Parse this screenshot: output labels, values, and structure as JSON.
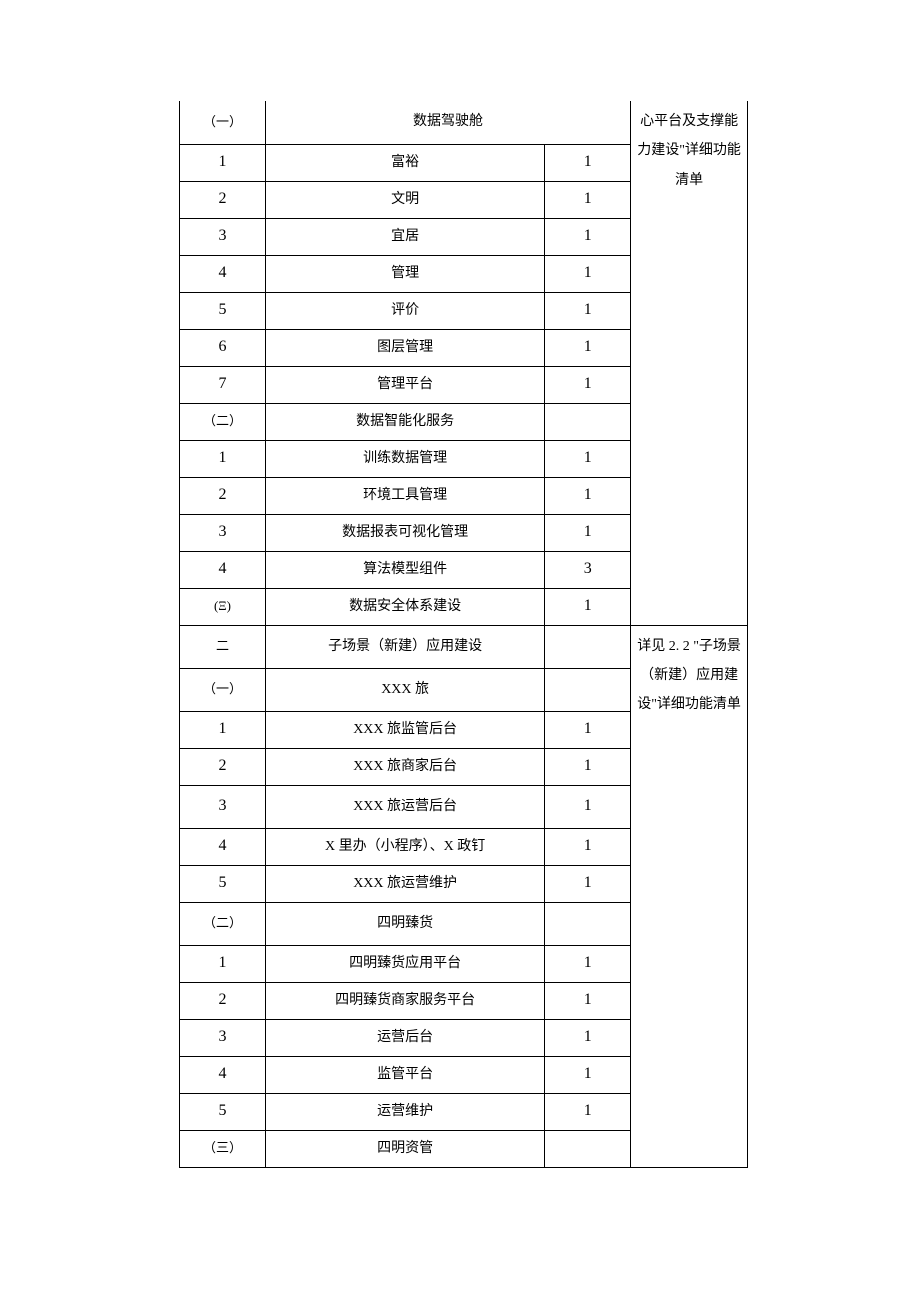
{
  "table": {
    "border_color": "#000000",
    "background_color": "#ffffff",
    "col_widths": {
      "idx": 86,
      "name": 280,
      "qty": 86,
      "note": 117
    },
    "font": {
      "cn": "SimSun",
      "num": "Times New Roman",
      "base_size": 14,
      "num_size": 16
    },
    "rows": [
      {
        "idx": "（一）",
        "idx_class": "cn-idx",
        "name": "数据驾驶舱",
        "qty": "",
        "span_name": 2,
        "h": "h-tall"
      },
      {
        "idx": "1",
        "idx_class": "num",
        "name": "富裕",
        "qty": "1",
        "h": "h-norm"
      },
      {
        "idx": "2",
        "idx_class": "num",
        "name": "文明",
        "qty": "1",
        "h": "h-norm"
      },
      {
        "idx": "3",
        "idx_class": "num",
        "name": "宜居",
        "qty": "1",
        "h": "h-norm"
      },
      {
        "idx": "4",
        "idx_class": "num",
        "name": "管理",
        "qty": "1",
        "h": "h-norm"
      },
      {
        "idx": "5",
        "idx_class": "num",
        "name": "评价",
        "qty": "1",
        "h": "h-norm"
      },
      {
        "idx": "6",
        "idx_class": "num",
        "name": "图层管理",
        "qty": "1",
        "h": "h-norm"
      },
      {
        "idx": "7",
        "idx_class": "num",
        "name": "管理平台",
        "qty": "1",
        "h": "h-norm"
      },
      {
        "idx": "（二）",
        "idx_class": "cn-idx",
        "name": "数据智能化服务",
        "qty": "",
        "h": "h-norm"
      },
      {
        "idx": "1",
        "idx_class": "num",
        "name": "训练数据管理",
        "qty": "1",
        "h": "h-norm"
      },
      {
        "idx": "2",
        "idx_class": "num",
        "name": "环境工具管理",
        "qty": "1",
        "h": "h-norm"
      },
      {
        "idx": "3",
        "idx_class": "num",
        "name": "数据报表可视化管理",
        "qty": "1",
        "h": "h-norm"
      },
      {
        "idx": "4",
        "idx_class": "num",
        "name": "算法模型组件",
        "qty": "3",
        "h": "h-norm"
      },
      {
        "idx": "(Ξ)",
        "idx_class": "cn-idx",
        "name": "数据安全体系建设",
        "qty": "1",
        "h": "h-norm"
      },
      {
        "idx": "二",
        "idx_class": "cn-idx",
        "name": "子场景（新建）应用建设",
        "qty": "",
        "h": "h-tall"
      },
      {
        "idx": "（一）",
        "idx_class": "cn-idx",
        "name": "XXX 旅",
        "qty": "",
        "h": "h-tall"
      },
      {
        "idx": "1",
        "idx_class": "num",
        "name": "XXX 旅监管后台",
        "qty": "1",
        "h": "h-norm"
      },
      {
        "idx": "2",
        "idx_class": "num",
        "name": "XXX 旅商家后台",
        "qty": "1",
        "h": "h-norm"
      },
      {
        "idx": "3",
        "idx_class": "num",
        "name": "XXX 旅运营后台",
        "qty": "1",
        "h": "h-tall"
      },
      {
        "idx": "4",
        "idx_class": "num",
        "name": "X 里办（小程序）、X 政钉",
        "qty": "1",
        "h": "h-norm"
      },
      {
        "idx": "5",
        "idx_class": "num",
        "name": "XXX 旅运营维护",
        "qty": "1",
        "h": "h-norm"
      },
      {
        "idx": "（二）",
        "idx_class": "cn-idx",
        "name": "四明臻货",
        "qty": "",
        "h": "h-tall"
      },
      {
        "idx": "1",
        "idx_class": "num",
        "name": "四明臻货应用平台",
        "qty": "1",
        "h": "h-norm"
      },
      {
        "idx": "2",
        "idx_class": "num",
        "name": "四明臻货商家服务平台",
        "qty": "1",
        "h": "h-norm"
      },
      {
        "idx": "3",
        "idx_class": "num",
        "name": "运营后台",
        "qty": "1",
        "h": "h-norm"
      },
      {
        "idx": "4",
        "idx_class": "num",
        "name": "监管平台",
        "qty": "1",
        "h": "h-norm"
      },
      {
        "idx": "5",
        "idx_class": "num",
        "name": "运营维护",
        "qty": "1",
        "h": "h-norm"
      },
      {
        "idx": "（三）",
        "idx_class": "cn-idx",
        "name": "四明资管",
        "qty": "",
        "h": "h-norm"
      }
    ],
    "notes": [
      {
        "start": 0,
        "span": 14,
        "text": "心平台及支撑能力建设\"详细功能清单",
        "cls": "first"
      },
      {
        "start": 14,
        "span": 14,
        "text": "详见 2. 2 \"子场景（新建）应用建设\"详细功能清单",
        "cls": ""
      }
    ]
  }
}
